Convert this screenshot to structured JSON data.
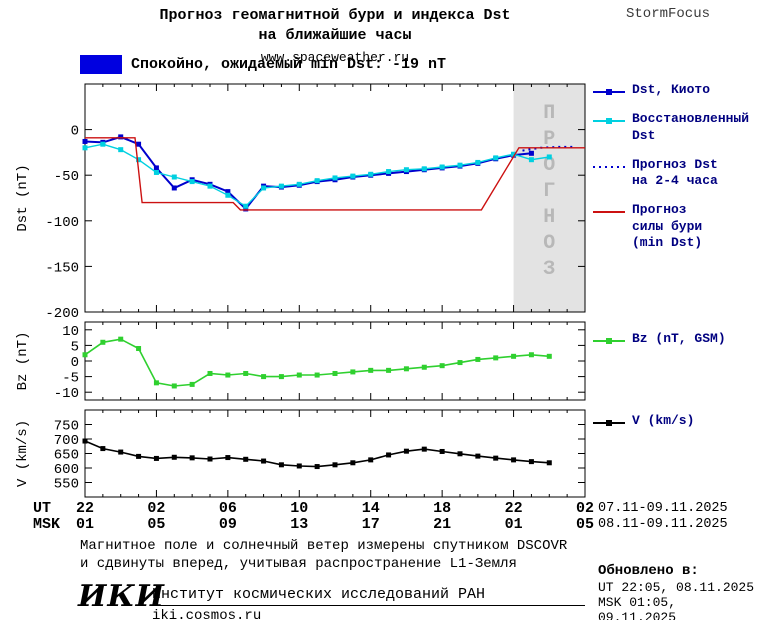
{
  "header": {
    "title_line1": "Прогноз геомагнитной бури и индекса Dst",
    "title_line2": "на ближайшие часы",
    "subtitle": "www.spaceweather.ru",
    "brand": "StormFocus"
  },
  "status_banner": {
    "color": "#0000e0",
    "text": "Спокойно, ожидаемый min Dst: -19 nT"
  },
  "forecast_band": {
    "label": "ПРОГНОЗ",
    "start_hour": 24,
    "end_hour": 28,
    "fill": "#e3e3e3",
    "text_color": "#b8b8b8"
  },
  "x_axis": {
    "ut_label": "UT",
    "msk_label": "MSK",
    "ut_ticks": [
      "22",
      "02",
      "06",
      "10",
      "14",
      "18",
      "22",
      "02"
    ],
    "msk_ticks": [
      "01",
      "05",
      "09",
      "13",
      "17",
      "21",
      "01",
      "05"
    ],
    "ut_range": "07.11-09.11.2025",
    "msk_range": "08.11-09.11.2025"
  },
  "chart_data": [
    {
      "type": "line",
      "ylabel": "Dst (nT)",
      "ylim": [
        -200,
        50
      ],
      "yticks": [
        0,
        -50,
        -100,
        -150,
        -200
      ],
      "xlim_hours": [
        0,
        28
      ],
      "series": [
        {
          "name": "Dst, Киото",
          "color": "#0000cd",
          "marker": "square",
          "width": 2,
          "x": [
            0,
            1,
            2,
            3,
            4,
            5,
            6,
            7,
            8,
            9,
            10,
            11,
            12,
            13,
            14,
            15,
            16,
            17,
            18,
            19,
            20,
            21,
            22,
            23,
            24,
            25
          ],
          "values": [
            -13,
            -14,
            -8,
            -16,
            -42,
            -64,
            -55,
            -60,
            -68,
            -87,
            -62,
            -63,
            -61,
            -57,
            -55,
            -52,
            -50,
            -48,
            -46,
            -44,
            -42,
            -40,
            -37,
            -32,
            -28,
            -26
          ]
        },
        {
          "name": "Восстановленный Dst",
          "color": "#00d0e0",
          "marker": "square",
          "width": 1.4,
          "x": [
            0,
            1,
            2,
            3,
            4,
            5,
            6,
            7,
            8,
            9,
            10,
            11,
            12,
            13,
            14,
            15,
            16,
            17,
            18,
            19,
            20,
            21,
            22,
            23,
            24,
            25,
            26
          ],
          "values": [
            -20,
            -16,
            -22,
            -33,
            -47,
            -52,
            -57,
            -62,
            -72,
            -84,
            -64,
            -62,
            -60,
            -56,
            -53,
            -51,
            -49,
            -46,
            -44,
            -43,
            -41,
            -39,
            -36,
            -31,
            -27,
            -33,
            -30
          ]
        },
        {
          "name": "Прогноз Dst на 2-4 часа",
          "color": "#0000cd",
          "style": "dotted",
          "width": 2,
          "x": [
            24.5,
            25.5,
            26.5,
            27.5
          ],
          "values": [
            -23,
            -20,
            -19,
            -19
          ]
        },
        {
          "name": "Прогноз силы бури (min Dst)",
          "color": "#cc1111",
          "width": 1.4,
          "x": [
            0,
            2.8,
            3.2,
            8.3,
            8.7,
            22.2,
            24.3,
            28
          ],
          "values": [
            -9,
            -9,
            -80,
            -80,
            -88,
            -88,
            -20,
            -20
          ]
        }
      ]
    },
    {
      "type": "line",
      "ylabel": "Bz (nT)",
      "ylim": [
        -12.5,
        12.5
      ],
      "yticks": [
        10,
        5,
        0,
        -5,
        -10
      ],
      "xlim_hours": [
        0,
        28
      ],
      "series": [
        {
          "name": "Bz (nT, GSM)",
          "color": "#2fd02f",
          "marker": "square",
          "width": 1.6,
          "x": [
            0,
            1,
            2,
            3,
            4,
            5,
            6,
            7,
            8,
            9,
            10,
            11,
            12,
            13,
            14,
            15,
            16,
            17,
            18,
            19,
            20,
            21,
            22,
            23,
            24,
            25,
            26
          ],
          "values": [
            2,
            6,
            7,
            4,
            -7,
            -8,
            -7.5,
            -4,
            -4.5,
            -4,
            -5,
            -5,
            -4.5,
            -4.5,
            -4,
            -3.5,
            -3,
            -3,
            -2.5,
            -2,
            -1.5,
            -0.5,
            0.5,
            1,
            1.5,
            2,
            1.5
          ]
        }
      ]
    },
    {
      "type": "line",
      "ylabel": "V (km/s)",
      "ylim": [
        500,
        800
      ],
      "yticks": [
        750,
        700,
        650,
        600,
        550
      ],
      "xlim_hours": [
        0,
        28
      ],
      "series": [
        {
          "name": "V (km/s)",
          "color": "#000000",
          "marker": "square",
          "width": 1.6,
          "x": [
            0,
            1,
            2,
            3,
            4,
            5,
            6,
            7,
            8,
            9,
            10,
            11,
            12,
            13,
            14,
            15,
            16,
            17,
            18,
            19,
            20,
            21,
            22,
            23,
            24,
            25,
            26
          ],
          "values": [
            693,
            667,
            655,
            640,
            633,
            637,
            635,
            631,
            636,
            630,
            624,
            611,
            607,
            605,
            611,
            618,
            628,
            645,
            658,
            665,
            657,
            649,
            641,
            634,
            628,
            622,
            618
          ]
        }
      ]
    }
  ],
  "legends": {
    "dst": [
      {
        "label": "Dst, Киото",
        "color": "#0000cd",
        "style": "solid",
        "marker": true
      },
      {
        "label": "Восстановленный\nDst",
        "color": "#00d0e0",
        "style": "solid",
        "marker": true
      },
      {
        "label": "Прогноз Dst\nна 2-4 часа",
        "color": "#0000cd",
        "style": "dotted",
        "marker": false
      },
      {
        "label": "Прогноз\nсилы бури\n(min Dst)",
        "color": "#cc1111",
        "style": "solid",
        "marker": false
      }
    ],
    "bz": [
      {
        "label": "Bz (nT, GSM)",
        "color": "#2fd02f",
        "style": "solid",
        "marker": true
      }
    ],
    "v": [
      {
        "label": "V (km/s)",
        "color": "#000000",
        "style": "solid",
        "marker": true
      }
    ]
  },
  "footnote": {
    "line1": "Магнитное поле и солнечный ветер измерены спутником DSCOVR",
    "line2": "и сдвинуты вперед, учитывая распространение L1-Земля"
  },
  "footer": {
    "logo": "ИКИ",
    "institute": "Институт космических исследований РАН",
    "site": "iki.cosmos.ru"
  },
  "updated": {
    "heading": "Обновлено в:",
    "ut": "UT  22:05, 08.11.2025",
    "msk": "MSK 01:05, 09.11.2025"
  }
}
